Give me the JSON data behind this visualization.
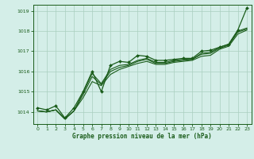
{
  "title": "Graphe pression niveau de la mer (hPa)",
  "bg_color": "#d4eee8",
  "grid_color": "#aacfbf",
  "line_color": "#1a5c1a",
  "spine_color": "#1a5c1a",
  "xlim": [
    -0.5,
    23.5
  ],
  "ylim": [
    1013.4,
    1019.3
  ],
  "yticks": [
    1014,
    1015,
    1016,
    1017,
    1018,
    1019
  ],
  "xticks": [
    0,
    1,
    2,
    3,
    4,
    5,
    6,
    7,
    8,
    9,
    10,
    11,
    12,
    13,
    14,
    15,
    16,
    17,
    18,
    19,
    20,
    21,
    22,
    23
  ],
  "series": [
    {
      "x": [
        0,
        1,
        2,
        3,
        4,
        5,
        6,
        7,
        8,
        9,
        10,
        11,
        12,
        13,
        14,
        15,
        16,
        17,
        18,
        19,
        20,
        21,
        22,
        23
      ],
      "y": [
        1014.2,
        1014.1,
        1014.3,
        1013.7,
        1014.2,
        1015.0,
        1016.0,
        1015.0,
        1016.3,
        1016.5,
        1016.45,
        1016.8,
        1016.75,
        1016.55,
        1016.55,
        1016.6,
        1016.65,
        1016.65,
        1017.0,
        1017.05,
        1017.2,
        1017.35,
        1018.05,
        1019.15
      ],
      "marker": true,
      "lw": 0.9
    },
    {
      "x": [
        0,
        1,
        2,
        3,
        4,
        5,
        6,
        7,
        8,
        9,
        10,
        11,
        12,
        13,
        14,
        15,
        16,
        17,
        18,
        19,
        20,
        21,
        22,
        23
      ],
      "y": [
        1014.05,
        1014.0,
        1014.1,
        1013.65,
        1014.05,
        1014.7,
        1015.5,
        1015.3,
        1015.85,
        1016.1,
        1016.25,
        1016.4,
        1016.5,
        1016.35,
        1016.35,
        1016.45,
        1016.5,
        1016.55,
        1016.75,
        1016.8,
        1017.1,
        1017.25,
        1017.85,
        1018.05
      ],
      "marker": false,
      "lw": 0.8
    },
    {
      "x": [
        0,
        1,
        2,
        3,
        4,
        5,
        6,
        7,
        8,
        9,
        10,
        11,
        12,
        13,
        14,
        15,
        16,
        17,
        18,
        19,
        20,
        21,
        22,
        23
      ],
      "y": [
        1014.05,
        1014.0,
        1014.1,
        1013.65,
        1014.05,
        1014.85,
        1015.75,
        1015.35,
        1016.0,
        1016.2,
        1016.3,
        1016.5,
        1016.6,
        1016.4,
        1016.4,
        1016.5,
        1016.55,
        1016.6,
        1016.85,
        1016.9,
        1017.15,
        1017.3,
        1017.95,
        1018.1
      ],
      "marker": false,
      "lw": 0.8
    },
    {
      "x": [
        0,
        1,
        2,
        3,
        4,
        5,
        6,
        7,
        8,
        9,
        10,
        11,
        12,
        13,
        14,
        15,
        16,
        17,
        18,
        19,
        20,
        21,
        22,
        23
      ],
      "y": [
        1014.05,
        1014.0,
        1014.1,
        1013.65,
        1014.05,
        1014.95,
        1015.9,
        1015.4,
        1016.1,
        1016.3,
        1016.35,
        1016.55,
        1016.65,
        1016.45,
        1016.45,
        1016.55,
        1016.6,
        1016.6,
        1016.9,
        1016.95,
        1017.2,
        1017.35,
        1018.0,
        1018.15
      ],
      "marker": false,
      "lw": 0.8
    }
  ]
}
